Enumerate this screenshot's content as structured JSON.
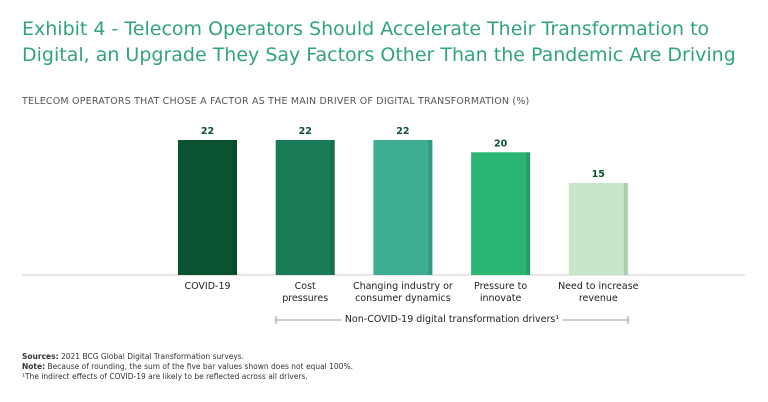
{
  "chart_data": {
    "type": "bar",
    "title": "Exhibit 4 - Telecom Operators Should Accelerate Their Transformation to Digital, an Upgrade They Say Factors Other Than the Pandemic Are Driving",
    "subtitle": "TELECOM OPERATORS THAT CHOSE A FACTOR AS THE MAIN DRIVER OF DIGITAL TRANSFORMATION (%)",
    "categories": [
      "COVID-19",
      "Cost pressures",
      "Changing industry or consumer dynamics",
      "Pressure to innovate",
      "Need to increase revenue"
    ],
    "values": [
      22,
      22,
      22,
      20,
      15
    ],
    "colors": [
      "#0a5230",
      "#197a56",
      "#3eae92",
      "#2bb673",
      "#c8e6cc"
    ],
    "group_label": "Non-COVID-19 digital transformation drivers¹",
    "notes": [
      {
        "label": "Sources:",
        "text": "2021 BCG Global Digital Transformation surveys."
      },
      {
        "label": "Note:",
        "text": "Because of rounding, the sum of the five bar values shown does not equal 100%."
      },
      {
        "label": "",
        "text": "¹The indirect effects of COVID-19 are likely to be reflected across all drivers."
      }
    ]
  }
}
